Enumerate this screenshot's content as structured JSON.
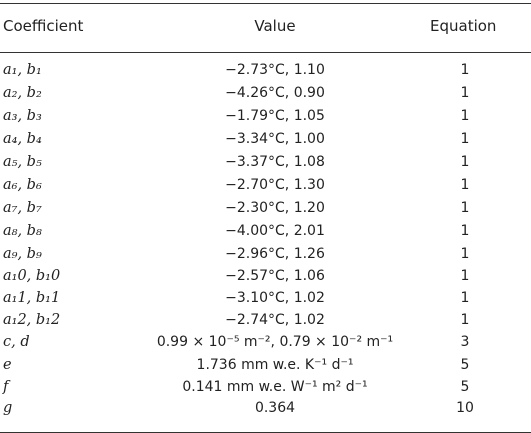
{
  "table": {
    "headers": {
      "coefficient": "Coefficient",
      "value": "Value",
      "equation": "Equation"
    },
    "rows": [
      {
        "coefficient": "a₁, b₁",
        "value": "−2.73°C, 1.10",
        "equation": "1"
      },
      {
        "coefficient": "a₂, b₂",
        "value": "−4.26°C, 0.90",
        "equation": "1"
      },
      {
        "coefficient": "a₃, b₃",
        "value": "−1.79°C, 1.05",
        "equation": "1"
      },
      {
        "coefficient": "a₄, b₄",
        "value": "−3.34°C, 1.00",
        "equation": "1"
      },
      {
        "coefficient": "a₅, b₅",
        "value": "−3.37°C, 1.08",
        "equation": "1"
      },
      {
        "coefficient": "a₆, b₆",
        "value": "−2.70°C, 1.30",
        "equation": "1"
      },
      {
        "coefficient": "a₇, b₇",
        "value": "−2.30°C, 1.20",
        "equation": "1"
      },
      {
        "coefficient": "a₈, b₈",
        "value": "−4.00°C, 2.01",
        "equation": "1"
      },
      {
        "coefficient": "a₉, b₉",
        "value": "−2.96°C, 1.26",
        "equation": "1"
      },
      {
        "coefficient": "a₁0, b₁0",
        "value": "−2.57°C, 1.06",
        "equation": "1"
      },
      {
        "coefficient": "a₁1, b₁1",
        "value": "−3.10°C, 1.02",
        "equation": "1"
      },
      {
        "coefficient": "a₁2, b₁2",
        "value": "−2.74°C, 1.02",
        "equation": "1"
      },
      {
        "coefficient": "c, d",
        "value": "0.99 × 10⁻⁵ m⁻², 0.79 × 10⁻² m⁻¹",
        "equation": "3"
      },
      {
        "coefficient": "e",
        "value": "1.736 mm w.e. K⁻¹ d⁻¹",
        "equation": "5"
      },
      {
        "coefficient": "f",
        "value": "0.141 mm w.e. W⁻¹ m² d⁻¹",
        "equation": "5"
      },
      {
        "coefficient": "g",
        "value": "0.364",
        "equation": "10"
      }
    ]
  }
}
